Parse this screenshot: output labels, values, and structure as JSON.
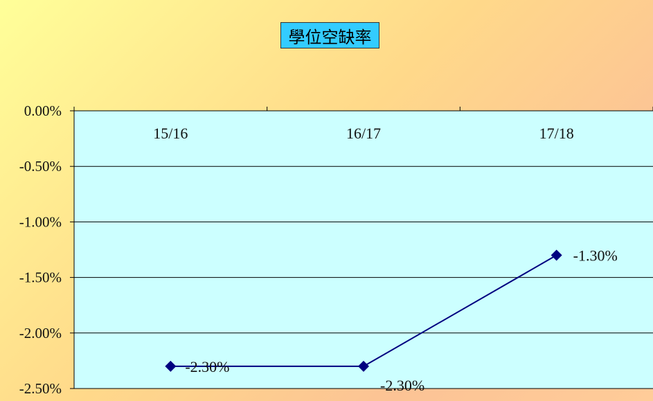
{
  "chart_data": {
    "type": "line",
    "title": "學位空缺率",
    "xlabel": "",
    "ylabel": "",
    "categories": [
      "15/16",
      "16/17",
      "17/18"
    ],
    "series": [
      {
        "values": [
          -2.3,
          -2.3,
          -1.3
        ],
        "color": "#000080"
      }
    ],
    "data_labels": [
      "-2.30%",
      "-2.30%",
      "-1.30%"
    ],
    "y_ticks": [
      "0.00%",
      "-0.50%",
      "-1.00%",
      "-1.50%",
      "-2.00%",
      "-2.50%"
    ],
    "ylim": [
      -2.5,
      0
    ],
    "grid": true,
    "legend": "none",
    "x_axis_position": "top",
    "marker": "diamond",
    "plot_background": "#ccffff"
  }
}
